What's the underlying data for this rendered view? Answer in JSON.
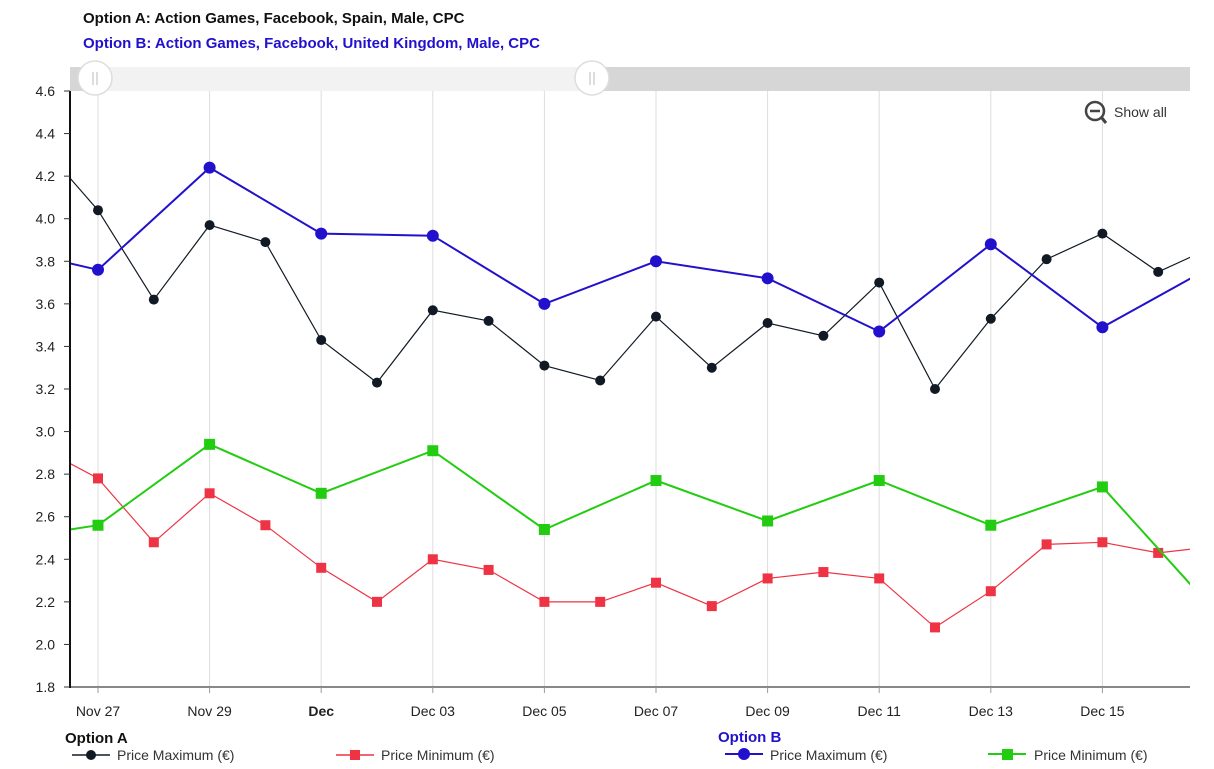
{
  "header": {
    "option_a": "Option A: Action Games, Facebook, Spain, Male, CPC",
    "option_b": "Option B: Action Games, Facebook, United Kingdom, Male, CPC"
  },
  "controls": {
    "show_all_label": "Show all"
  },
  "legend": {
    "option_a_heading": "Option A",
    "option_b_heading": "Option B",
    "a_max_label": "Price Maximum (€)",
    "a_min_label": "Price Minimum (€)",
    "b_max_label": "Price Maximum (€)",
    "b_min_label": "Price Minimum (€)"
  },
  "colors": {
    "option_a_max": "#111a24",
    "option_a_min": "#ee3344",
    "option_b_max": "#2211cc",
    "option_b_min": "#22cc11",
    "title_b": "#2211cc",
    "scrollbar": "#d6d6d6"
  },
  "chart_data": {
    "type": "line",
    "ylim": [
      1.8,
      4.6
    ],
    "yticks": [
      "1.8",
      "2.0",
      "2.2",
      "2.4",
      "2.6",
      "2.8",
      "3.0",
      "3.2",
      "3.4",
      "3.6",
      "3.8",
      "4.0",
      "4.2",
      "4.4",
      "4.6"
    ],
    "xlim": [
      "2016-11-26.5",
      "2016-12-17.5"
    ],
    "xticks": [
      {
        "date": "Nov 27",
        "label": "Nov 27",
        "bold": false
      },
      {
        "date": "Nov 29",
        "label": "Nov 29",
        "bold": false
      },
      {
        "date": "Dec 01",
        "label": "Dec",
        "bold": true
      },
      {
        "date": "Dec 03",
        "label": "Dec 03",
        "bold": false
      },
      {
        "date": "Dec 05",
        "label": "Dec 05",
        "bold": false
      },
      {
        "date": "Dec 07",
        "label": "Dec 07",
        "bold": false
      },
      {
        "date": "Dec 09",
        "label": "Dec 09",
        "bold": false
      },
      {
        "date": "Dec 11",
        "label": "Dec 11",
        "bold": false
      },
      {
        "date": "Dec 13",
        "label": "Dec 13",
        "bold": false
      },
      {
        "date": "Dec 15",
        "label": "Dec 15",
        "bold": false
      }
    ],
    "grid": "vertical",
    "series": [
      {
        "name": "Price Maximum (€)",
        "option": "Option A",
        "marker": "circle",
        "x": [
          "Nov 26",
          "Nov 27",
          "Nov 28",
          "Nov 29",
          "Nov 30",
          "Dec 01",
          "Dec 02",
          "Dec 03",
          "Dec 04",
          "Dec 05",
          "Dec 06",
          "Dec 07",
          "Dec 08",
          "Dec 09",
          "Dec 10",
          "Dec 11",
          "Dec 12",
          "Dec 13",
          "Dec 14",
          "Dec 15",
          "Dec 16",
          "Dec 17"
        ],
        "values": [
          4.34,
          4.04,
          3.62,
          3.97,
          3.89,
          3.43,
          3.23,
          3.57,
          3.52,
          3.31,
          3.24,
          3.54,
          3.3,
          3.51,
          3.45,
          3.7,
          3.2,
          3.53,
          3.81,
          3.93,
          3.75,
          3.87
        ]
      },
      {
        "name": "Price Minimum (€)",
        "option": "Option A",
        "marker": "square",
        "x": [
          "Nov 26",
          "Nov 27",
          "Nov 28",
          "Nov 29",
          "Nov 30",
          "Dec 01",
          "Dec 02",
          "Dec 03",
          "Dec 04",
          "Dec 05",
          "Dec 06",
          "Dec 07",
          "Dec 08",
          "Dec 09",
          "Dec 10",
          "Dec 11",
          "Dec 12",
          "Dec 13",
          "Dec 14",
          "Dec 15",
          "Dec 16",
          "Dec 17"
        ],
        "values": [
          2.92,
          2.78,
          2.48,
          2.71,
          2.56,
          2.36,
          2.2,
          2.4,
          2.35,
          2.2,
          2.2,
          2.29,
          2.18,
          2.31,
          2.34,
          2.31,
          2.08,
          2.25,
          2.47,
          2.48,
          2.43,
          2.46
        ]
      },
      {
        "name": "Price Maximum (€)",
        "option": "Option B",
        "marker": "circle",
        "x": [
          "Nov 25",
          "Nov 27",
          "Nov 29",
          "Dec 01",
          "Dec 03",
          "Dec 05",
          "Dec 07",
          "Dec 09",
          "Dec 11",
          "Dec 13",
          "Dec 15",
          "Dec 17"
        ],
        "values": [
          3.88,
          3.76,
          4.24,
          3.93,
          3.92,
          3.6,
          3.8,
          3.72,
          3.47,
          3.88,
          3.49,
          3.78
        ]
      },
      {
        "name": "Price Minimum (€)",
        "option": "Option B",
        "marker": "square",
        "x": [
          "Nov 25",
          "Nov 27",
          "Nov 29",
          "Dec 01",
          "Dec 03",
          "Dec 05",
          "Dec 07",
          "Dec 09",
          "Dec 11",
          "Dec 13",
          "Dec 15",
          "Dec 17"
        ],
        "values": [
          2.48,
          2.56,
          2.94,
          2.71,
          2.91,
          2.54,
          2.77,
          2.58,
          2.77,
          2.56,
          2.74,
          2.16
        ]
      }
    ]
  }
}
